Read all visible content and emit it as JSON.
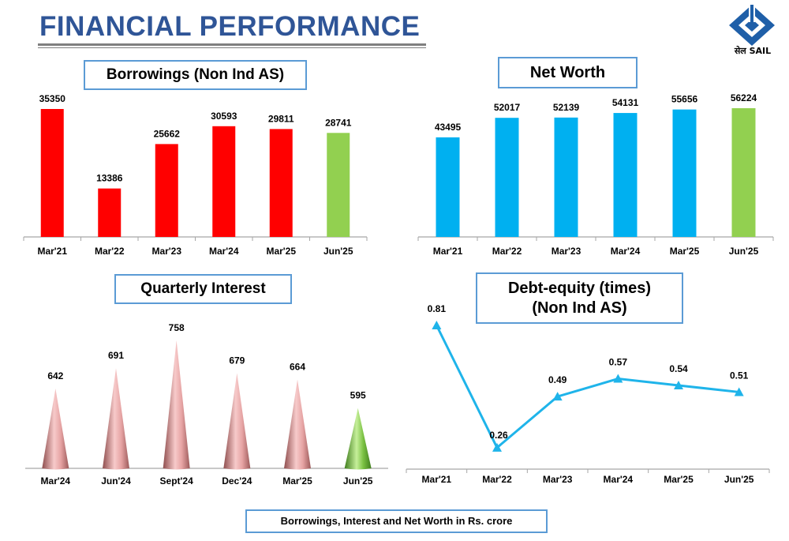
{
  "header": {
    "title": "FINANCIAL PERFORMANCE",
    "logo_text": "सेल SAIL"
  },
  "footer": {
    "note": "Borrowings, Interest and Net Worth in Rs. crore"
  },
  "colors": {
    "title_blue": "#2f5597",
    "box_border": "#5b9bd5",
    "red": "#ff0000",
    "green": "#92d050",
    "cyan": "#00b0f0",
    "cone_pink": "#e6a3a3",
    "cone_green": "#7ac142",
    "line": "#1fb4ea"
  },
  "chart_data": [
    {
      "id": "borrowings",
      "type": "bar",
      "title": "Borrowings (Non Ind AS)",
      "categories": [
        "Mar'21",
        "Mar'22",
        "Mar'23",
        "Mar'24",
        "Mar'25",
        "Jun'25"
      ],
      "values": [
        35350,
        13386,
        25662,
        30593,
        29811,
        28741
      ],
      "value_labels": [
        "35350",
        "13386",
        "25662",
        "30593",
        "29811",
        "28741"
      ],
      "bar_colors": [
        "#ff0000",
        "#ff0000",
        "#ff0000",
        "#ff0000",
        "#ff0000",
        "#92d050"
      ],
      "ylim": [
        0,
        35350
      ],
      "grid": false,
      "legend": "none"
    },
    {
      "id": "networth",
      "type": "bar",
      "title": "Net Worth",
      "categories": [
        "Mar'21",
        "Mar'22",
        "Mar'23",
        "Mar'24",
        "Mar'25",
        "Jun'25"
      ],
      "values": [
        43495,
        52017,
        52139,
        54131,
        55656,
        56224
      ],
      "value_labels": [
        "43495",
        "52017",
        "52139",
        "54131",
        "55656",
        "56224"
      ],
      "bar_colors": [
        "#00b0f0",
        "#00b0f0",
        "#00b0f0",
        "#00b0f0",
        "#00b0f0",
        "#92d050"
      ],
      "ylim": [
        0,
        56224
      ],
      "grid": false,
      "legend": "none"
    },
    {
      "id": "interest",
      "type": "bar",
      "style": "cone",
      "title": "Quarterly Interest",
      "categories": [
        "Mar'24",
        "Jun'24",
        "Sept'24",
        "Dec'24",
        "Mar'25",
        "Jun'25"
      ],
      "values": [
        642,
        691,
        758,
        679,
        664,
        595
      ],
      "value_labels": [
        "642",
        "691",
        "758",
        "679",
        "664",
        "595"
      ],
      "bar_colors": [
        "#e6a3a3",
        "#e6a3a3",
        "#e6a3a3",
        "#e6a3a3",
        "#e6a3a3",
        "#7ac142"
      ],
      "ylim": [
        450,
        758
      ],
      "grid": false,
      "legend": "none"
    },
    {
      "id": "debt_equity",
      "type": "line",
      "title": "Debt-equity (times)",
      "subtitle": "(Non Ind AS)",
      "categories": [
        "Mar'21",
        "Mar'22",
        "Mar'23",
        "Mar'24",
        "Mar'25",
        "Jun'25"
      ],
      "values": [
        0.81,
        0.26,
        0.49,
        0.57,
        0.54,
        0.51
      ],
      "value_labels": [
        "0.81",
        "0.26",
        "0.49",
        "0.57",
        "0.54",
        "0.51"
      ],
      "marker": "triangle",
      "ylim": [
        0,
        0.81
      ],
      "grid": false,
      "legend": "none"
    }
  ]
}
